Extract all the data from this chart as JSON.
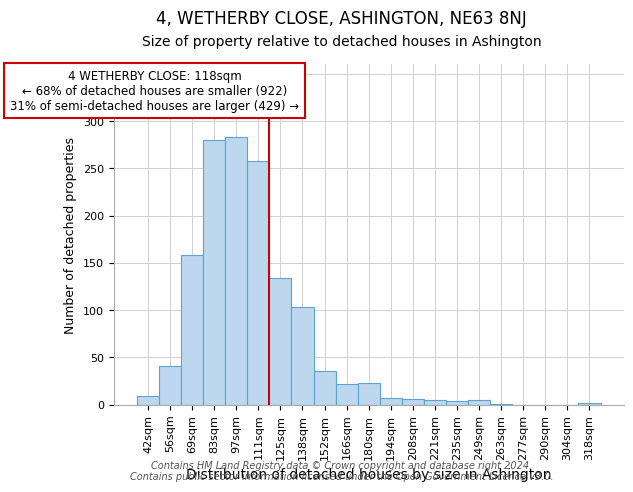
{
  "title": "4, WETHERBY CLOSE, ASHINGTON, NE63 8NJ",
  "subtitle": "Size of property relative to detached houses in Ashington",
  "xlabel": "Distribution of detached houses by size in Ashington",
  "ylabel": "Number of detached properties",
  "footer_line1": "Contains HM Land Registry data © Crown copyright and database right 2024.",
  "footer_line2": "Contains public sector information licensed under the Open Government Licence v3.0.",
  "bar_labels": [
    "42sqm",
    "56sqm",
    "69sqm",
    "83sqm",
    "97sqm",
    "111sqm",
    "125sqm",
    "138sqm",
    "152sqm",
    "166sqm",
    "180sqm",
    "194sqm",
    "208sqm",
    "221sqm",
    "235sqm",
    "249sqm",
    "263sqm",
    "277sqm",
    "290sqm",
    "304sqm",
    "318sqm"
  ],
  "bar_values": [
    9,
    41,
    158,
    280,
    283,
    258,
    134,
    103,
    35,
    22,
    23,
    7,
    6,
    5,
    4,
    5,
    1,
    0,
    0,
    0,
    2
  ],
  "bar_color": "#bdd7ee",
  "bar_edge_color": "#5ba3d0",
  "reference_line_x": 5.5,
  "reference_line_color": "#cc0000",
  "annotation_title": "4 WETHERBY CLOSE: 118sqm",
  "annotation_line1": "← 68% of detached houses are smaller (922)",
  "annotation_line2": "31% of semi-detached houses are larger (429) →",
  "annotation_box_edge_color": "#cc0000",
  "ylim": [
    0,
    360
  ],
  "yticks": [
    0,
    50,
    100,
    150,
    200,
    250,
    300,
    350
  ],
  "title_fontsize": 12,
  "subtitle_fontsize": 10,
  "xlabel_fontsize": 10,
  "ylabel_fontsize": 9,
  "tick_fontsize": 8,
  "annotation_fontsize": 8.5,
  "footer_fontsize": 7
}
